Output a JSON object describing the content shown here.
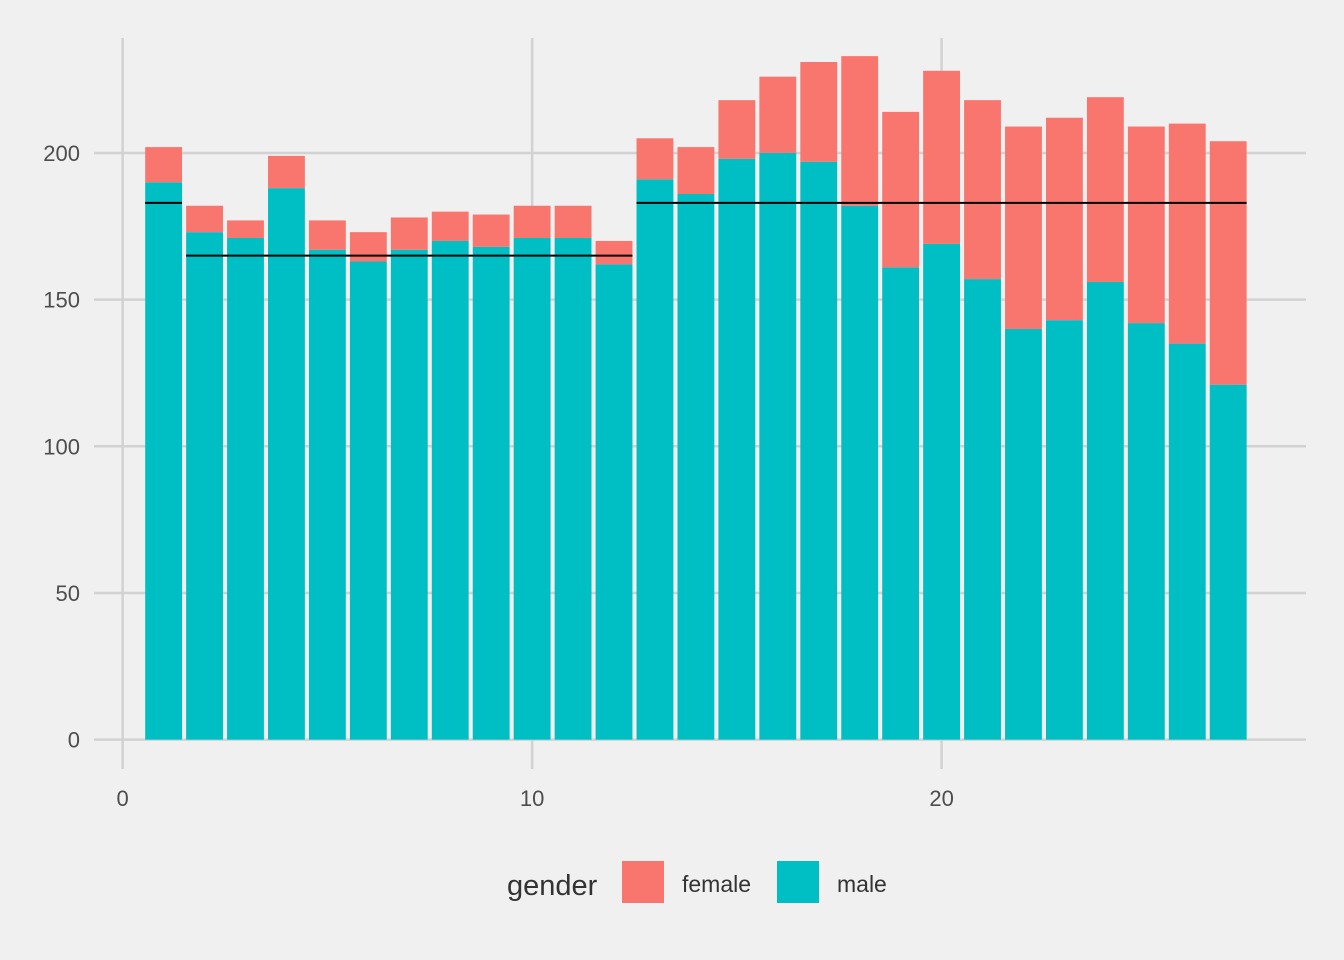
{
  "chart_data": {
    "type": "bar",
    "stacked": true,
    "title": "",
    "xlabel": "",
    "ylabel": "",
    "x": [
      1,
      2,
      3,
      4,
      5,
      6,
      7,
      8,
      9,
      10,
      11,
      12,
      13,
      14,
      15,
      16,
      17,
      18,
      19,
      20,
      21,
      22,
      23,
      24,
      25,
      26,
      27
    ],
    "series": [
      {
        "name": "male",
        "color": "#00BFC4",
        "values": [
          190,
          173,
          171,
          188,
          167,
          163,
          167,
          170,
          168,
          171,
          171,
          162,
          191,
          186,
          198,
          200,
          197,
          182,
          161,
          169,
          157,
          140,
          143,
          156,
          142,
          135,
          121
        ]
      },
      {
        "name": "female",
        "color": "#F8766D",
        "values": [
          12,
          9,
          6,
          11,
          10,
          10,
          11,
          10,
          11,
          11,
          11,
          8,
          14,
          16,
          20,
          26,
          34,
          51,
          53,
          59,
          61,
          69,
          69,
          63,
          67,
          75,
          83
        ]
      }
    ],
    "reference_lines": [
      {
        "x_start": 0.55,
        "x_end": 1.45,
        "y": 183
      },
      {
        "x_start": 1.55,
        "x_end": 12.45,
        "y": 165
      },
      {
        "x_start": 12.55,
        "x_end": 27.45,
        "y": 183
      }
    ],
    "xlim": [
      -0.7,
      28.9
    ],
    "ylim": [
      -10,
      246
    ],
    "x_ticks": [
      0,
      10,
      20
    ],
    "x_tick_labels": [
      "0",
      "10",
      "20"
    ],
    "y_ticks": [
      0,
      50,
      100,
      150,
      200
    ],
    "y_tick_labels": [
      "0",
      "50",
      "100",
      "150",
      "200"
    ],
    "grid": true,
    "legend": {
      "position": "bottom",
      "title": "gender",
      "items": [
        {
          "label": "female",
          "color": "#F8766D"
        },
        {
          "label": "male",
          "color": "#00BFC4"
        }
      ]
    }
  }
}
